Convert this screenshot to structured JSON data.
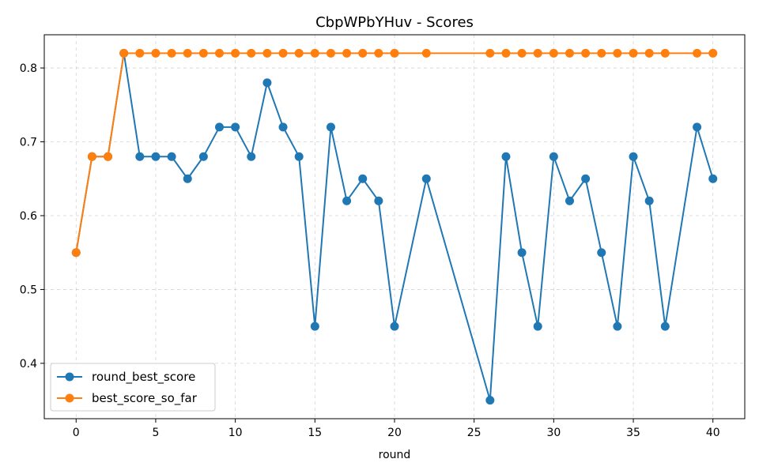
{
  "chart_data": {
    "type": "line",
    "title": "CbpWPbYHuv - Scores",
    "xlabel": "round",
    "ylabel": "",
    "xlim": [
      -2,
      42
    ],
    "ylim": [
      0.325,
      0.845
    ],
    "xticks": [
      0,
      5,
      10,
      15,
      20,
      25,
      30,
      35,
      40
    ],
    "yticks": [
      0.4,
      0.5,
      0.6,
      0.7,
      0.8
    ],
    "xtick_labels": [
      "0",
      "5",
      "10",
      "15",
      "20",
      "25",
      "30",
      "35",
      "40"
    ],
    "ytick_labels": [
      "0.4",
      "0.5",
      "0.6",
      "0.7",
      "0.8"
    ],
    "grid": true,
    "legend_position": "bottom-left",
    "series": [
      {
        "name": "round_best_score",
        "color": "#1f77b4",
        "x": [
          0,
          1,
          2,
          3,
          4,
          5,
          6,
          7,
          8,
          9,
          10,
          11,
          12,
          13,
          14,
          15,
          16,
          17,
          18,
          19,
          20,
          22,
          26,
          27,
          28,
          29,
          30,
          31,
          32,
          33,
          34,
          35,
          36,
          37,
          39,
          40
        ],
        "y": [
          0.55,
          0.68,
          0.68,
          0.82,
          0.68,
          0.68,
          0.68,
          0.65,
          0.68,
          0.72,
          0.72,
          0.68,
          0.78,
          0.72,
          0.68,
          0.45,
          0.72,
          0.62,
          0.65,
          0.62,
          0.45,
          0.65,
          0.35,
          0.68,
          0.55,
          0.45,
          0.68,
          0.62,
          0.65,
          0.55,
          0.45,
          0.68,
          0.62,
          0.45,
          0.72,
          0.65
        ]
      },
      {
        "name": "best_score_so_far",
        "color": "#ff7f0e",
        "x": [
          0,
          1,
          2,
          3,
          4,
          5,
          6,
          7,
          8,
          9,
          10,
          11,
          12,
          13,
          14,
          15,
          16,
          17,
          18,
          19,
          20,
          22,
          26,
          27,
          28,
          29,
          30,
          31,
          32,
          33,
          34,
          35,
          36,
          37,
          39,
          40
        ],
        "y": [
          0.55,
          0.68,
          0.68,
          0.82,
          0.82,
          0.82,
          0.82,
          0.82,
          0.82,
          0.82,
          0.82,
          0.82,
          0.82,
          0.82,
          0.82,
          0.82,
          0.82,
          0.82,
          0.82,
          0.82,
          0.82,
          0.82,
          0.82,
          0.82,
          0.82,
          0.82,
          0.82,
          0.82,
          0.82,
          0.82,
          0.82,
          0.82,
          0.82,
          0.82,
          0.82,
          0.82
        ]
      }
    ]
  }
}
